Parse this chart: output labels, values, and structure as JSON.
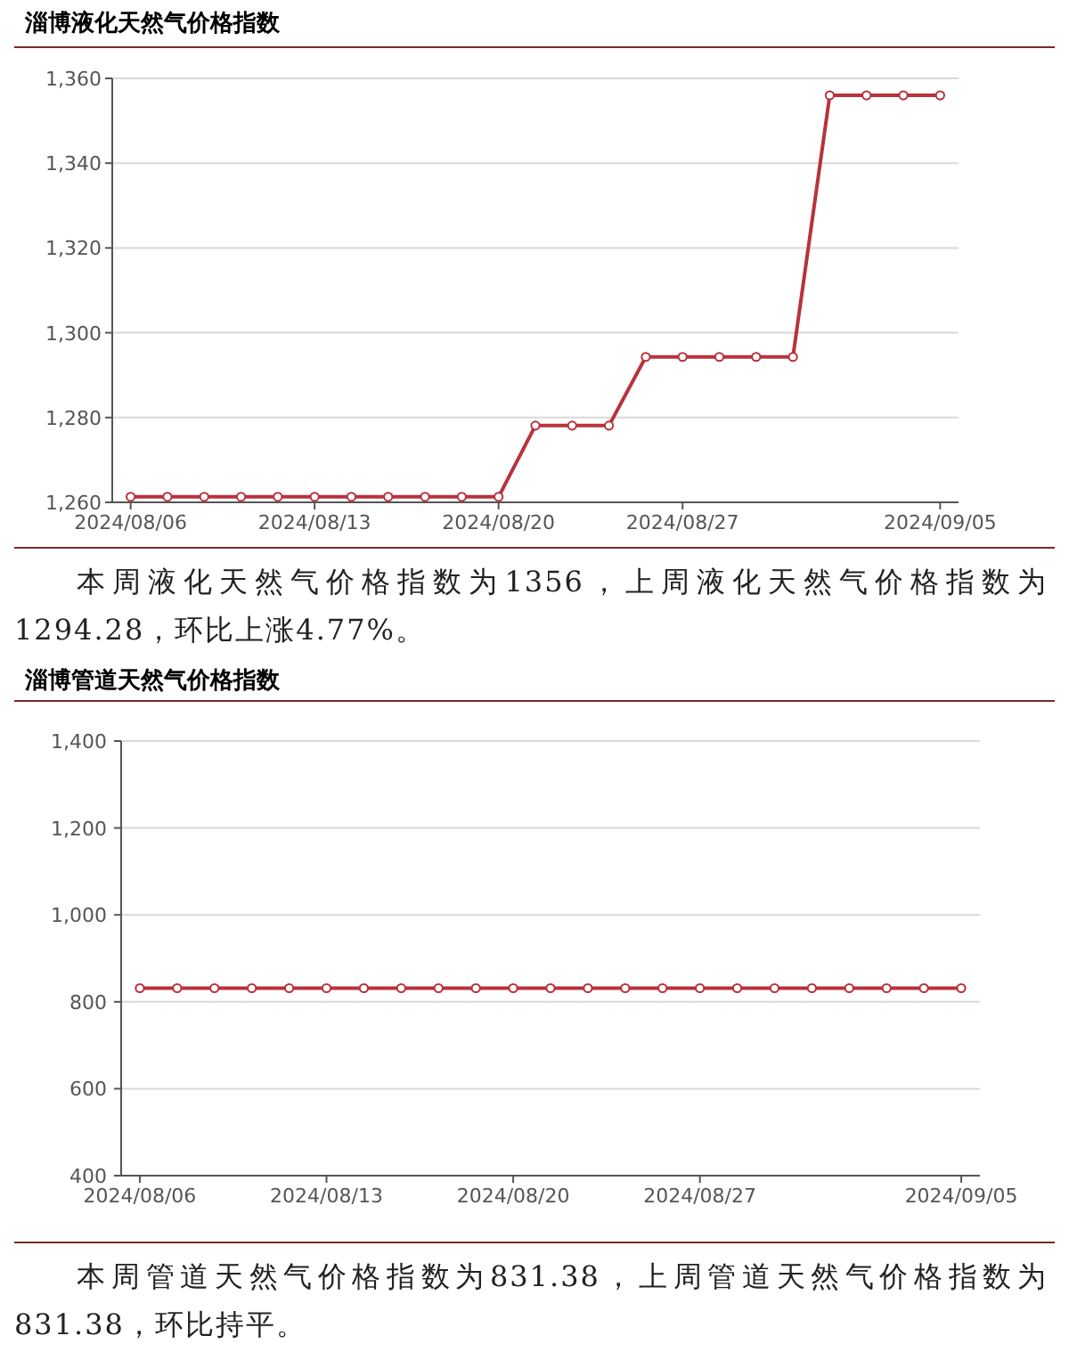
{
  "chart_data": [
    {
      "type": "line",
      "title": "淄博液化天然气价格指数",
      "categories": [
        "2024/08/06",
        null,
        null,
        null,
        null,
        "2024/08/13",
        null,
        null,
        null,
        null,
        "2024/08/20",
        null,
        null,
        null,
        null,
        "2024/08/27",
        null,
        null,
        null,
        null,
        null,
        null,
        "2024/09/05"
      ],
      "series": [
        {
          "color": "#b8323c",
          "values": [
            1261.3,
            1261.3,
            1261.3,
            1261.3,
            1261.3,
            1261.3,
            1261.3,
            1261.3,
            1261.3,
            1261.3,
            1261.3,
            1278.1,
            1278.1,
            1278.1,
            1294.3,
            1294.3,
            1294.3,
            1294.3,
            1294.3,
            1356,
            1356,
            1356,
            1356
          ]
        }
      ],
      "ylim": [
        1260,
        1360
      ],
      "yticks": [
        {
          "value": 1260,
          "label": "1,260"
        },
        {
          "value": 1280,
          "label": "1,280"
        },
        {
          "value": 1300,
          "label": "1,300"
        },
        {
          "value": 1320,
          "label": "1,320"
        },
        {
          "value": 1340,
          "label": "1,340"
        },
        {
          "value": 1360,
          "label": "1,360"
        }
      ],
      "grid": "y",
      "marker": "circle",
      "annotations": [
        "本周液化天然气价格指数为1356，上周液化天然气价格指数为1294.28，环比上涨4.77%。"
      ]
    },
    {
      "type": "line",
      "title": "淄博管道天然气价格指数",
      "categories": [
        "2024/08/06",
        null,
        null,
        null,
        null,
        "2024/08/13",
        null,
        null,
        null,
        null,
        "2024/08/20",
        null,
        null,
        null,
        null,
        "2024/08/27",
        null,
        null,
        null,
        null,
        null,
        null,
        "2024/09/05"
      ],
      "series": [
        {
          "color": "#b8323c",
          "values": [
            831.4,
            831.4,
            831.4,
            831.4,
            831.4,
            831.4,
            831.4,
            831.4,
            831.4,
            831.4,
            831.4,
            831.4,
            831.4,
            831.4,
            831.4,
            831.4,
            831.4,
            831.4,
            831.4,
            831.4,
            831.4,
            831.4,
            831.4
          ]
        }
      ],
      "ylim": [
        400,
        1400
      ],
      "yticks": [
        400,
        600,
        800,
        {
          "value": 1000,
          "label": "1,000"
        },
        {
          "value": 1200,
          "label": "1,200"
        },
        {
          "value": 1400,
          "label": "1,400"
        }
      ],
      "grid": "y",
      "marker": "circle",
      "annotations": [
        "本周管道天然气价格指数为831.38，上周管道天然气价格指数为831.38，环比持平。"
      ]
    }
  ]
}
